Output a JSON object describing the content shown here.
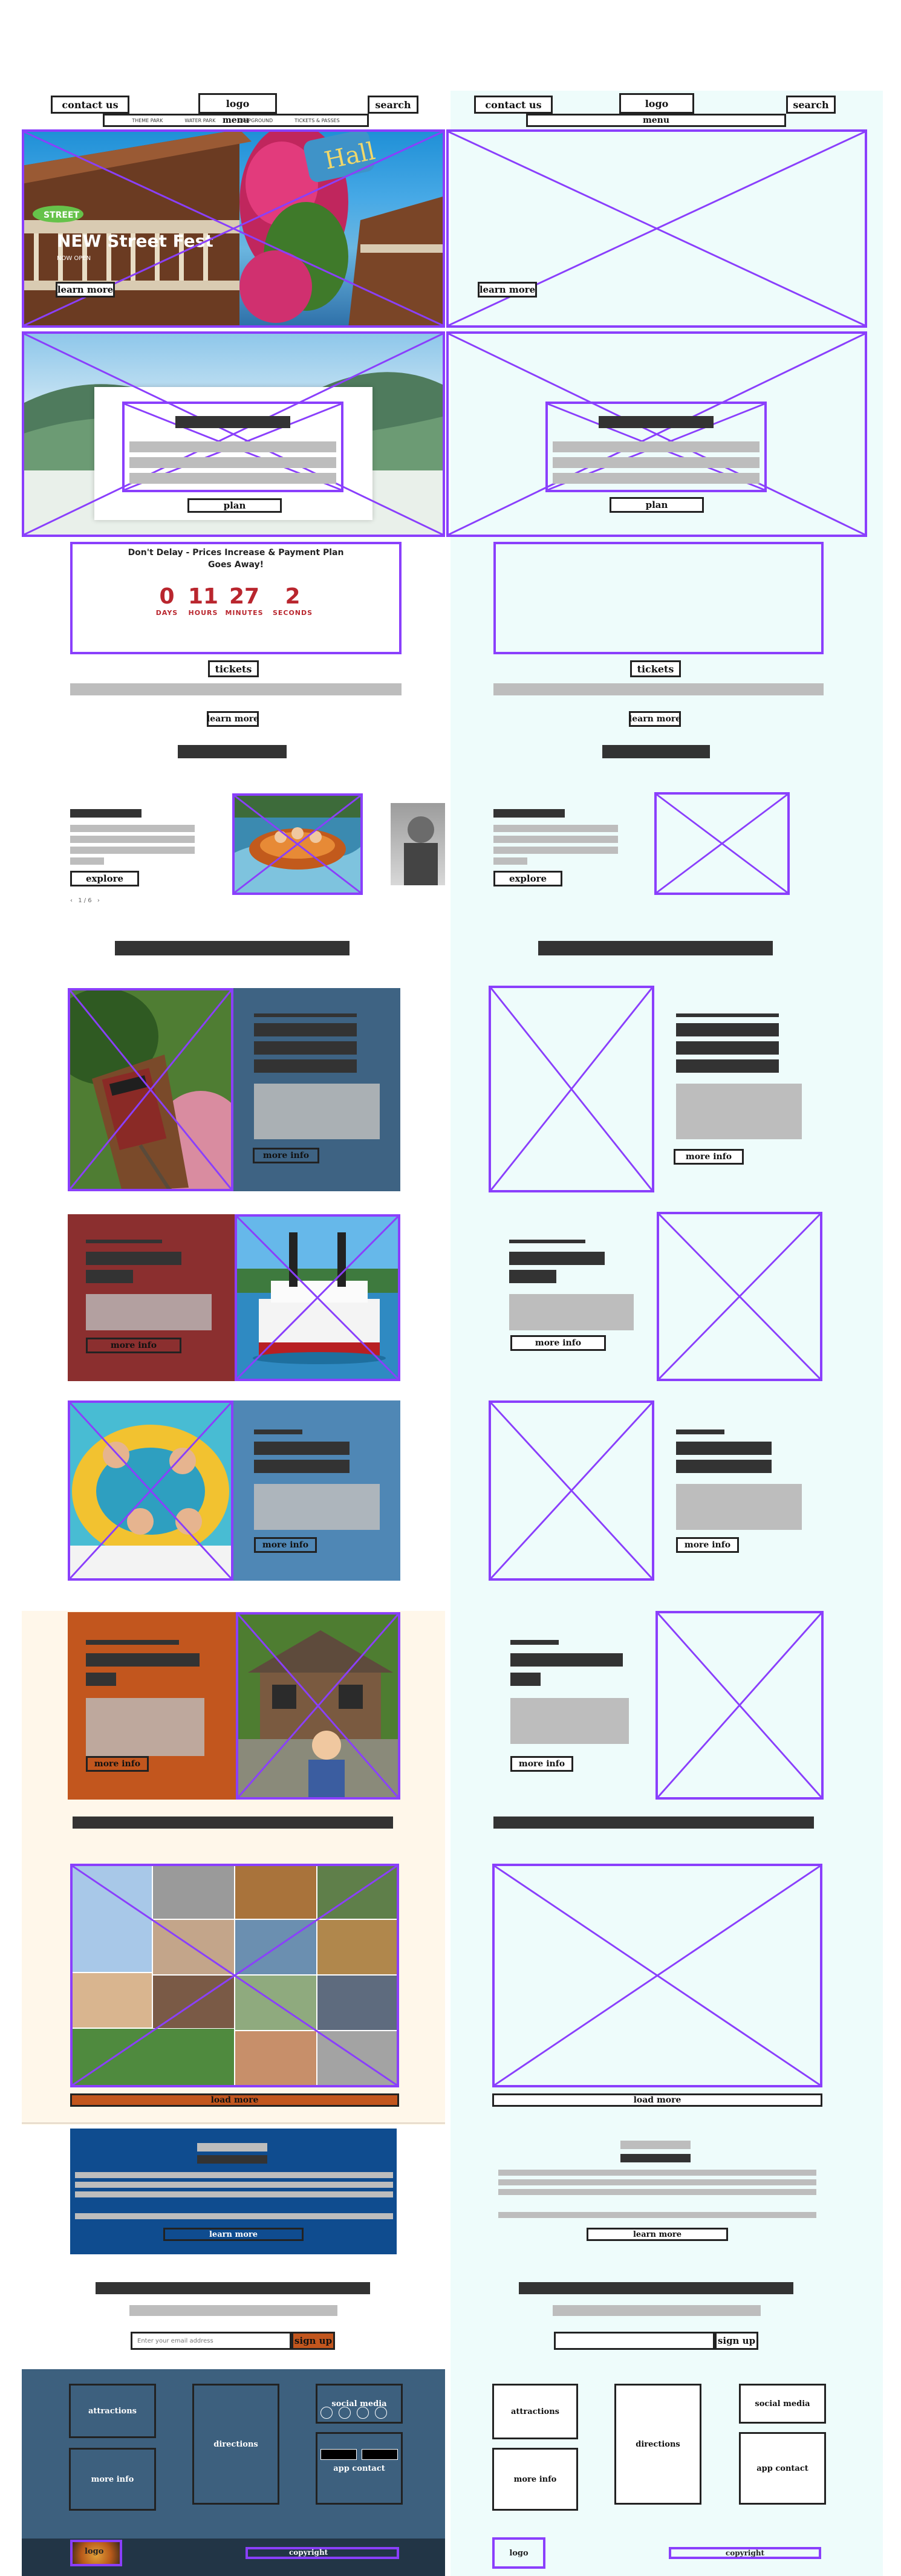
{
  "header": {
    "contact_label": "contact us",
    "logo_label": "logo",
    "search_label": "search",
    "menu_label": "menu",
    "nav_links": [
      "THEME PARK",
      "WATER PARK",
      "CAMPGROUND",
      "TICKETS & PASSES"
    ]
  },
  "hero": {
    "title": "NEW Street Fest",
    "subtitle": "NOW OPEN",
    "learn_more_label": "learn more"
  },
  "plan": {
    "plan_label": "plan"
  },
  "countdown": {
    "heading": "Don't Delay - Prices Increase & Payment Plan Goes Away!",
    "units": [
      {
        "value": "0",
        "label": "DAYS"
      },
      {
        "value": "11",
        "label": "HOURS"
      },
      {
        "value": "27",
        "label": "MINUTES"
      },
      {
        "value": "2",
        "label": "SECONDS"
      }
    ],
    "tickets_label": "tickets",
    "learn_more_label": "learn more"
  },
  "explore": {
    "explore_label": "explore",
    "pager": "1 / 6"
  },
  "features": {
    "more_info_label": "more info"
  },
  "gallery": {
    "load_more_label": "load more"
  },
  "safety": {
    "learn_more_label": "learn more"
  },
  "signup": {
    "placeholder": "Enter your email address",
    "sign_up_label": "sign up"
  },
  "footer": {
    "attractions_label": "attractions",
    "more_info_label": "more info",
    "directions_label": "directions",
    "social_media_label": "social media",
    "app_contact_label": "app contact",
    "logo_label": "logo",
    "copyright_label": "copyright"
  },
  "colors": {
    "wireframe_purple": "#8a3ffc",
    "wireframe_bg": "#eefcfb",
    "countdown_red": "#b9262e",
    "slate_blue": "#3e6383",
    "brick_red": "#8b2f2f",
    "steel_blue": "#4f87b5",
    "burnt_orange": "#c2561e",
    "cream": "#fff7ea",
    "navy": "#0f4c8f",
    "footer_slate": "#3d607e"
  }
}
